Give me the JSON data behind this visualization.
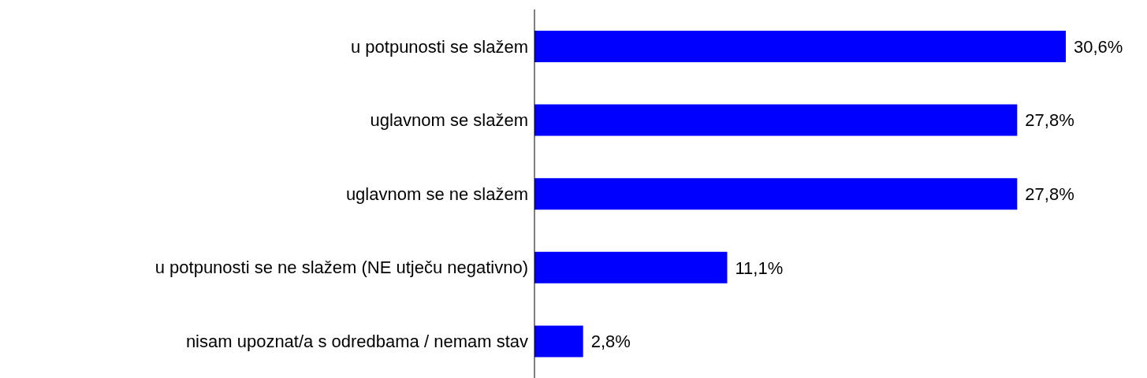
{
  "chart_data": {
    "type": "bar",
    "orientation": "horizontal",
    "categories": [
      "u potpunosti se slažem",
      "uglavnom se slažem",
      "uglavnom se ne slažem",
      "u potpunosti se ne slažem (NE utječu negativno)",
      "nisam upoznat/a s odredbama / nemam stav"
    ],
    "values": [
      30.6,
      27.8,
      27.8,
      11.1,
      2.8
    ],
    "value_labels": [
      "30,6%",
      "27,8%",
      "27,8%",
      "11,1%",
      "2,8%"
    ],
    "color": "#0000ff",
    "grid": false,
    "legend": false
  }
}
